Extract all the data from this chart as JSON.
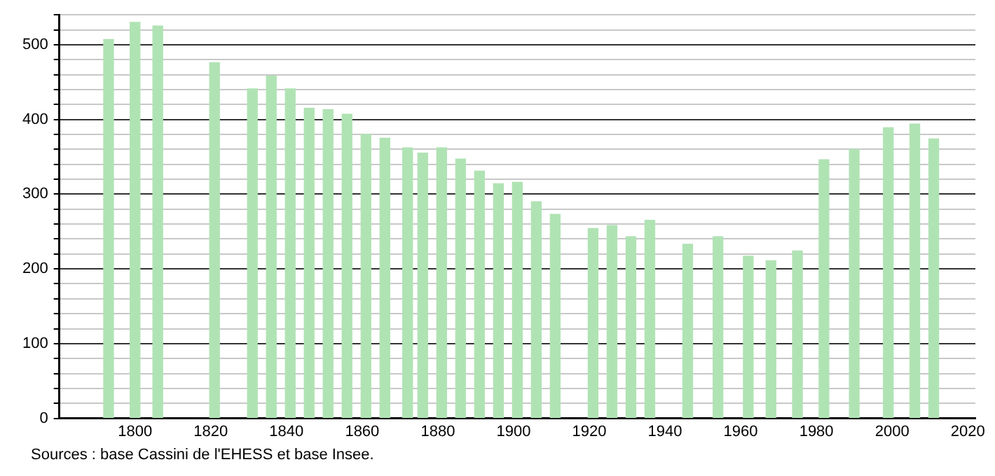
{
  "chart_data": {
    "type": "bar",
    "x": [
      1793,
      1800,
      1806,
      1821,
      1831,
      1836,
      1841,
      1846,
      1851,
      1856,
      1861,
      1866,
      1872,
      1876,
      1881,
      1886,
      1891,
      1896,
      1901,
      1906,
      1911,
      1921,
      1926,
      1931,
      1936,
      1946,
      1954,
      1962,
      1968,
      1975,
      1982,
      1990,
      1999,
      2006,
      2011
    ],
    "values": [
      507,
      530,
      525,
      476,
      441,
      458,
      441,
      415,
      413,
      407,
      380,
      375,
      362,
      355,
      362,
      347,
      331,
      314,
      316,
      290,
      273,
      254,
      258,
      243,
      265,
      233,
      243,
      217,
      211,
      224,
      346,
      360,
      389,
      394,
      374
    ],
    "color": "#b0e3b4",
    "xlim": [
      1780,
      2022
    ],
    "xticks": [
      1800,
      1820,
      1840,
      1860,
      1880,
      1900,
      1920,
      1940,
      1960,
      1980,
      2000,
      2020
    ],
    "ylim": [
      0,
      540
    ],
    "yticks": [
      0,
      {
        "value": 20,
        "label": null
      },
      {
        "value": 40,
        "label": null
      },
      {
        "value": 60,
        "label": null
      },
      {
        "value": 80,
        "label": null
      },
      100,
      {
        "value": 120,
        "label": null
      },
      {
        "value": 140,
        "label": null
      },
      {
        "value": 160,
        "label": null
      },
      {
        "value": 180,
        "label": null
      },
      200,
      {
        "value": 220,
        "label": null
      },
      {
        "value": 240,
        "label": null
      },
      {
        "value": 260,
        "label": null
      },
      {
        "value": 280,
        "label": null
      },
      300,
      {
        "value": 320,
        "label": null
      },
      {
        "value": 340,
        "label": null
      },
      {
        "value": 360,
        "label": null
      },
      {
        "value": 380,
        "label": null
      },
      400,
      {
        "value": 420,
        "label": null
      },
      {
        "value": 440,
        "label": null
      },
      {
        "value": 460,
        "label": null
      },
      {
        "value": 480,
        "label": null
      },
      500,
      {
        "value": 520,
        "label": null
      },
      {
        "value": 540,
        "label": null
      }
    ],
    "grid": "y",
    "annotations": [
      "Sources : base Cassini de l'EHESS et base Insee."
    ]
  }
}
